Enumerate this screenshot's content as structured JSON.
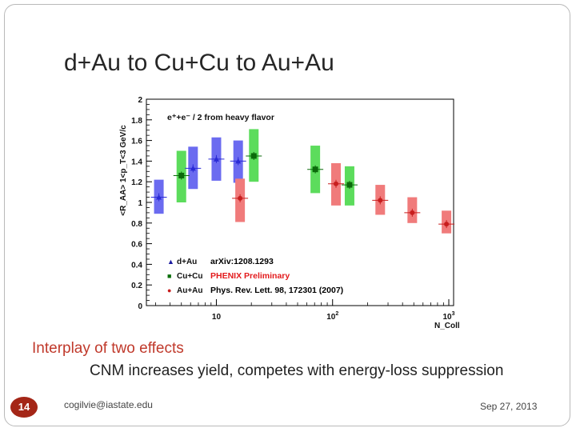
{
  "slide": {
    "title": "d+Au to Cu+Cu to Au+Au",
    "bullet1": "Interplay of two effects",
    "bullet2": "CNM increases yield, competes with energy-loss suppression",
    "page_number": "14",
    "footer_email": "cogilvie@iastate.edu",
    "footer_date": "Sep 27, 2013"
  },
  "chart_data": {
    "type": "scatter",
    "ylabel": "<R_AA> 1<p_T<3 GeV/c",
    "xlabel": "N_Coll",
    "x_scale": "log",
    "xlim": [
      2.5,
      1100
    ],
    "ylim": [
      0,
      2
    ],
    "y_ticks": [
      "0",
      "0.2",
      "0.4",
      "0.6",
      "0.8",
      "1",
      "1.2",
      "1.4",
      "1.6",
      "1.8",
      "2"
    ],
    "x_ticks": [
      "10",
      "10^2",
      "10^3"
    ],
    "header_label": "e⁺+e⁻ / 2  from heavy flavor",
    "legend": [
      {
        "marker": "▲",
        "label": "d+Au",
        "color": "#1a1aa0",
        "ref": "arXiv:1208.1293",
        "ref_color": "#000000"
      },
      {
        "marker": "■",
        "label": "Cu+Cu",
        "color": "#0a6e0a",
        "ref": "PHENIX Preliminary",
        "ref_color": "#e31a1c"
      },
      {
        "marker": "●",
        "label": "Au+Au",
        "color": "#c81e1e",
        "ref": "Phys. Rev. Lett. 98, 172301 (2007)",
        "ref_color": "#000000"
      }
    ],
    "series": [
      {
        "name": "d+Au",
        "color": "#2b2bd6",
        "box_color": "#6b6bf0",
        "points": [
          {
            "x": 3.2,
            "y": 1.05,
            "sys_lo": 0.89,
            "sys_hi": 1.22
          },
          {
            "x": 6.3,
            "y": 1.33,
            "sys_lo": 1.13,
            "sys_hi": 1.54
          },
          {
            "x": 10.0,
            "y": 1.42,
            "sys_lo": 1.21,
            "sys_hi": 1.63
          },
          {
            "x": 15.4,
            "y": 1.4,
            "sys_lo": 1.19,
            "sys_hi": 1.6
          }
        ]
      },
      {
        "name": "Cu+Cu",
        "color": "#0b6a0b",
        "box_color": "#5cdc5c",
        "points": [
          {
            "x": 5.0,
            "y": 1.26,
            "sys_lo": 1.0,
            "sys_hi": 1.5
          },
          {
            "x": 21.0,
            "y": 1.45,
            "sys_lo": 1.2,
            "sys_hi": 1.71
          },
          {
            "x": 71.0,
            "y": 1.32,
            "sys_lo": 1.09,
            "sys_hi": 1.55
          },
          {
            "x": 140.0,
            "y": 1.17,
            "sys_lo": 0.97,
            "sys_hi": 1.35
          }
        ]
      },
      {
        "name": "Au+Au",
        "color": "#c81e1e",
        "box_color": "#f07b7b",
        "points": [
          {
            "x": 16.0,
            "y": 1.04,
            "sys_lo": 0.81,
            "sys_hi": 1.23
          },
          {
            "x": 107.0,
            "y": 1.18,
            "sys_lo": 0.97,
            "sys_hi": 1.38
          },
          {
            "x": 257.0,
            "y": 1.02,
            "sys_lo": 0.88,
            "sys_hi": 1.17
          },
          {
            "x": 485.0,
            "y": 0.9,
            "sys_lo": 0.8,
            "sys_hi": 1.05
          },
          {
            "x": 955.0,
            "y": 0.79,
            "sys_lo": 0.7,
            "sys_hi": 0.92
          }
        ]
      }
    ]
  }
}
